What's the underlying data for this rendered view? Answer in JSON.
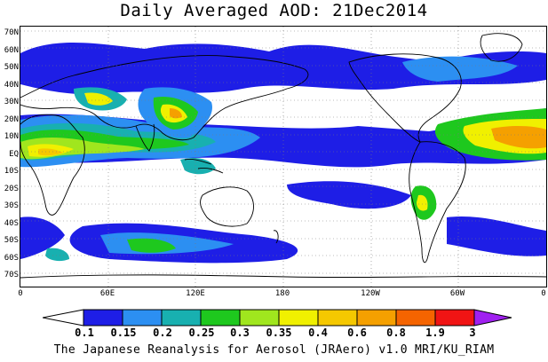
{
  "title": "Daily Averaged AOD: 21Dec2014",
  "credit": "The Japanese Reanalysis for Aerosol (JRAero) v1.0 MRI/KU_RIAM",
  "lat_labels": [
    "70N",
    "60N",
    "50N",
    "40N",
    "30N",
    "20N",
    "10N",
    "EQ",
    "10S",
    "20S",
    "30S",
    "40S",
    "50S",
    "60S",
    "70S"
  ],
  "lon_labels": [
    "0",
    "60E",
    "120E",
    "180",
    "120W",
    "60W",
    "0"
  ],
  "colorbar": {
    "labels": [
      "0.1",
      "0.15",
      "0.2",
      "0.25",
      "0.3",
      "0.35",
      "0.4",
      "0.6",
      "0.8",
      "1.9",
      "3"
    ],
    "colors": [
      "#1e1ee6",
      "#2c8ff2",
      "#18b0b0",
      "#1ec81e",
      "#a0e61e",
      "#f0f000",
      "#f5c800",
      "#f5a000",
      "#f56400",
      "#f01414",
      "#a020f0"
    ]
  }
}
